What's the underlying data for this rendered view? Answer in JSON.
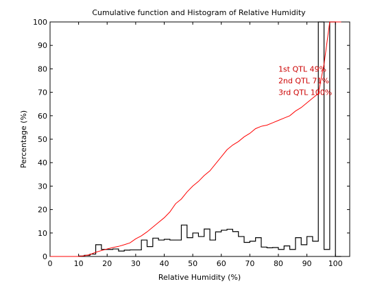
{
  "chart_data": {
    "type": "line",
    "title": "Cumulative function and Histogram of Relative Humidity",
    "xlabel": "Relative Humidity (%)",
    "ylabel": "Percentage (%)",
    "xlim": [
      0,
      105
    ],
    "ylim": [
      0,
      100
    ],
    "xticks": [
      0,
      10,
      20,
      30,
      40,
      50,
      60,
      70,
      80,
      90,
      100
    ],
    "yticks": [
      0,
      10,
      20,
      30,
      40,
      50,
      60,
      70,
      80,
      90,
      100
    ],
    "grid": false,
    "colors": {
      "cumulative": "#ff0000",
      "histogram": "#000000",
      "annotation": "#cc0000"
    },
    "series": [
      {
        "type": "line",
        "x": [
          0,
          10,
          12,
          14,
          16,
          18,
          20,
          22,
          24,
          26,
          28,
          30,
          32,
          34,
          36,
          38,
          40,
          42,
          44,
          46,
          48,
          50,
          52,
          54,
          56,
          58,
          60,
          62,
          64,
          66,
          68,
          70,
          72,
          74,
          76,
          78,
          80,
          82,
          84,
          86,
          88,
          90,
          92,
          94,
          96,
          98,
          100,
          102
        ],
        "y": [
          0,
          0,
          0.3,
          0.8,
          1.8,
          2.5,
          3.2,
          3.8,
          4.3,
          5.0,
          5.8,
          7.5,
          8.8,
          10.5,
          12.5,
          14.5,
          16.5,
          19.0,
          22.5,
          24.5,
          27.5,
          30.0,
          32.0,
          34.5,
          36.5,
          39.5,
          42.5,
          45.5,
          47.5,
          49.0,
          51.0,
          52.5,
          54.5,
          55.5,
          56.0,
          57.0,
          58.0,
          59.0,
          60.0,
          62.0,
          63.5,
          65.5,
          67.5,
          69.5,
          82.0,
          100,
          100,
          100
        ]
      },
      {
        "type": "histogram",
        "edges": [
          10,
          12,
          14,
          16,
          18,
          20,
          22,
          24,
          26,
          28,
          30,
          32,
          34,
          36,
          38,
          40,
          42,
          44,
          46,
          48,
          50,
          52,
          54,
          56,
          58,
          60,
          62,
          64,
          66,
          68,
          70,
          72,
          74,
          76,
          78,
          80,
          82,
          84,
          86,
          88,
          90,
          92,
          94,
          96,
          98,
          100,
          102
        ],
        "values": [
          0.2,
          0.5,
          1.0,
          5.0,
          3.0,
          3.0,
          3.2,
          2.3,
          2.7,
          2.8,
          2.8,
          7.0,
          4.2,
          7.8,
          7.0,
          7.3,
          7.0,
          7.0,
          13.4,
          8.0,
          10.0,
          8.5,
          11.7,
          7.0,
          10.5,
          11.2,
          11.6,
          10.6,
          8.5,
          6.0,
          6.5,
          8.0,
          4.0,
          3.7,
          3.8,
          3.0,
          4.5,
          3.0,
          8.0,
          5.0,
          8.5,
          6.5,
          100,
          3.0,
          100,
          0
        ]
      }
    ],
    "annotations": [
      {
        "text": "1st QTL  49%",
        "x": 80,
        "y": 80
      },
      {
        "text": "2nd QTL  71%",
        "x": 80,
        "y": 75
      },
      {
        "text": "3rd QTL 100%",
        "x": 80,
        "y": 70
      }
    ]
  }
}
